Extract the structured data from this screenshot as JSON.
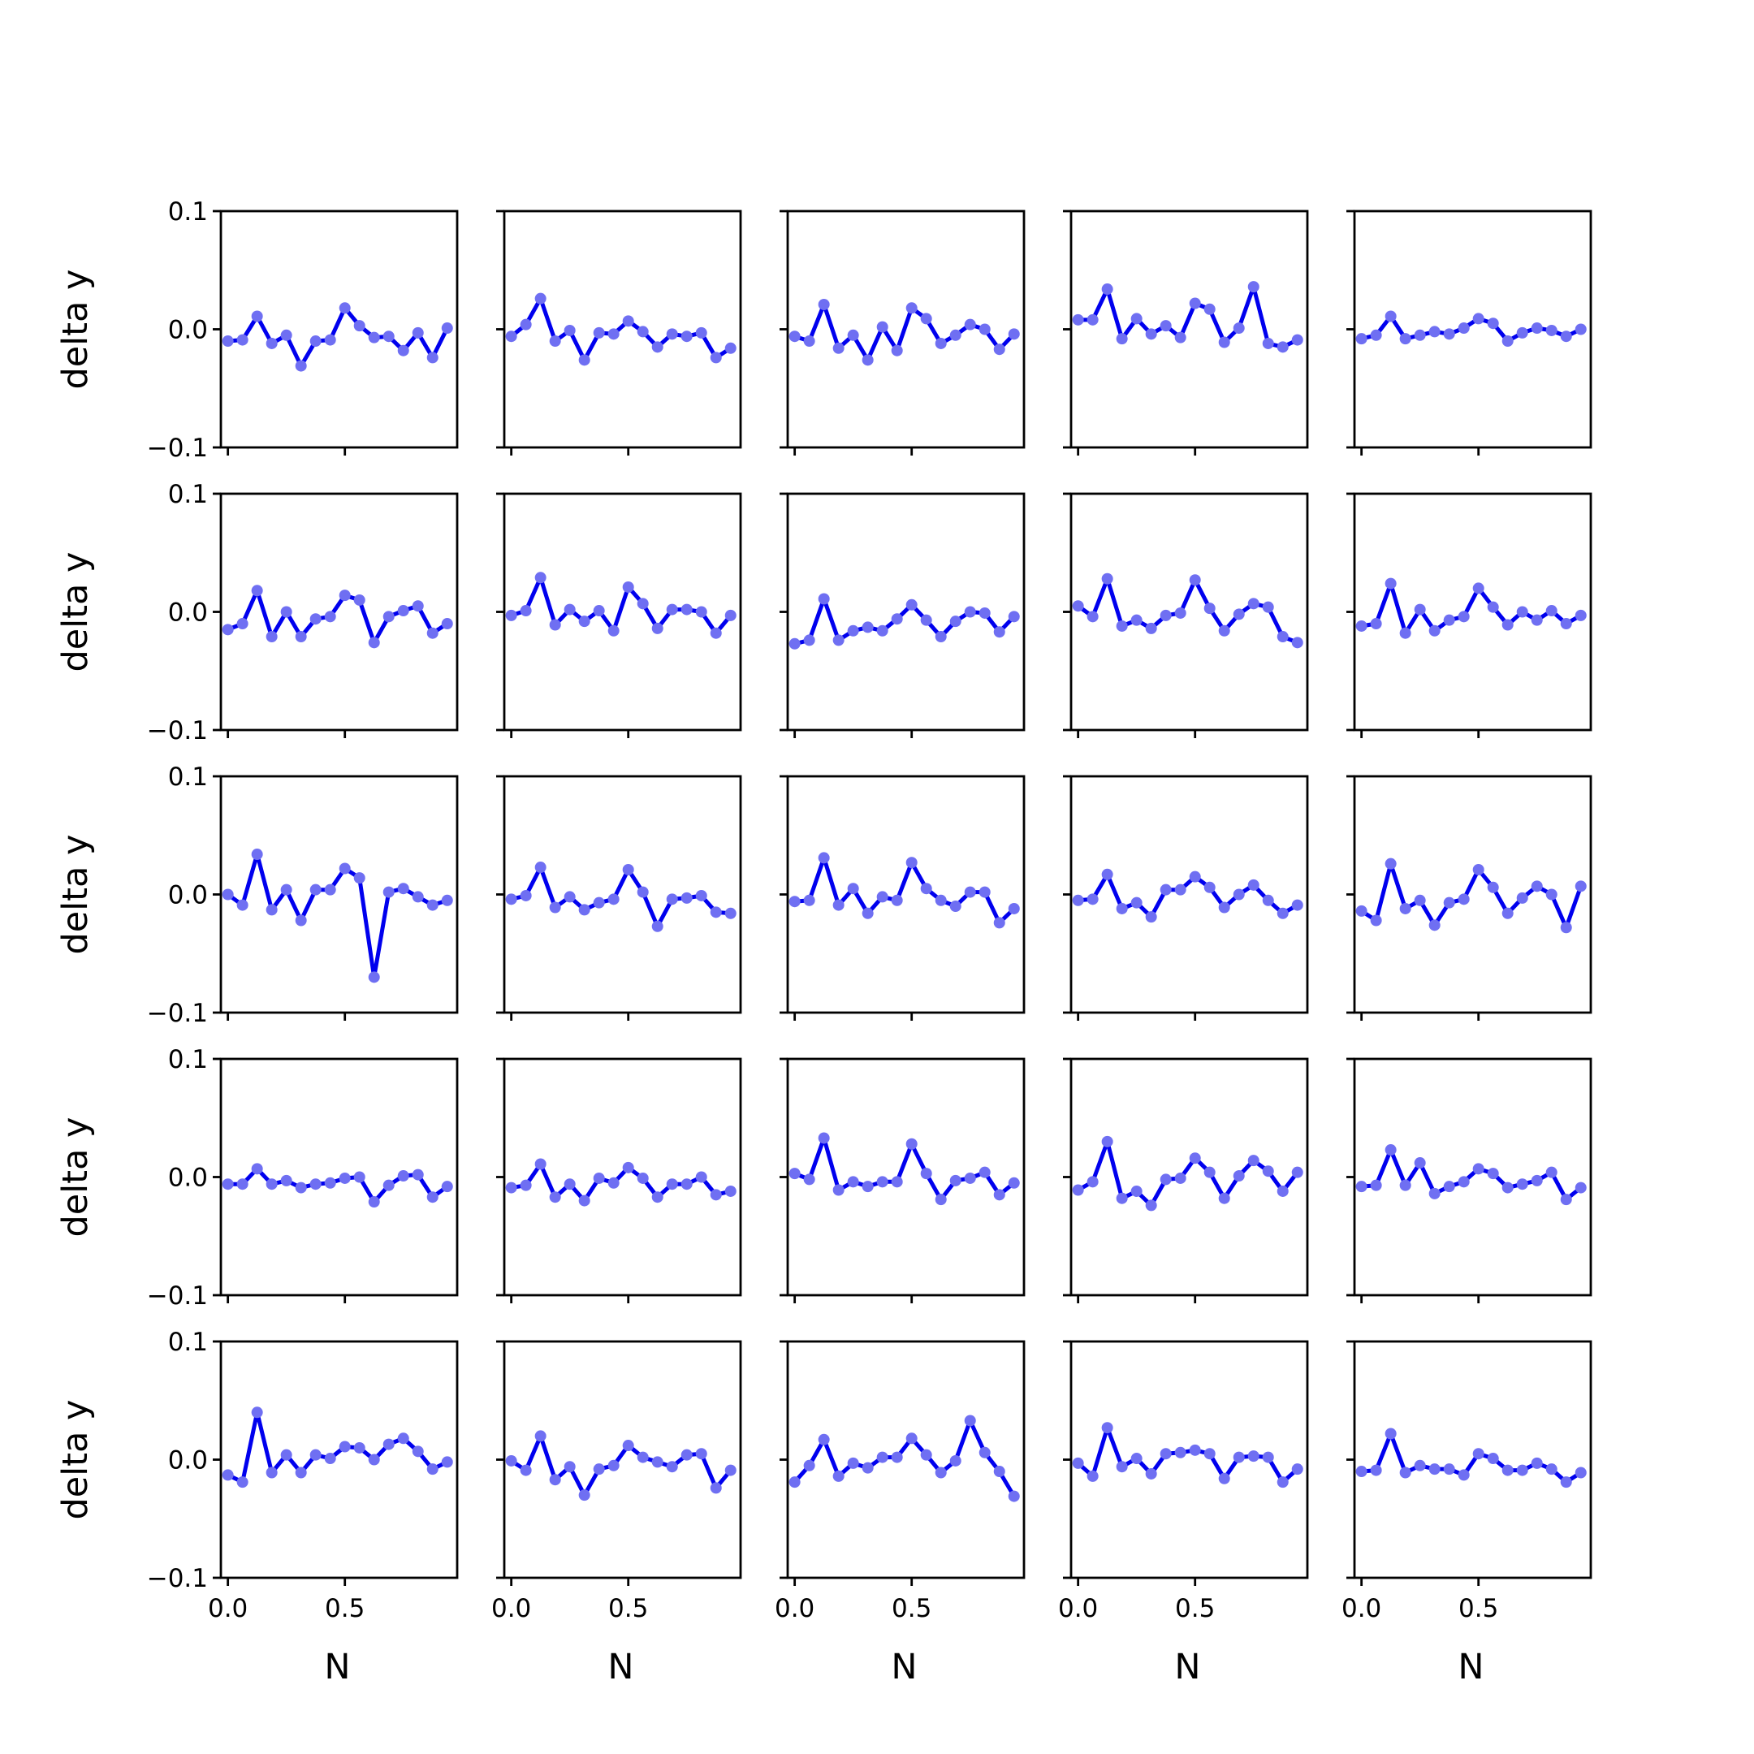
{
  "figure": {
    "type": "small-multiples-line",
    "rows": 5,
    "cols": 5,
    "colors": {
      "line": "#0000ee",
      "marker": "#6f6ff2",
      "axes": "#000000",
      "background": "#ffffff"
    }
  },
  "chart_data": {
    "type": "line",
    "xlabel": "N",
    "ylabel": "delta y",
    "xlim": [
      -0.03,
      0.98
    ],
    "ylim": [
      -0.1,
      0.1
    ],
    "xticks": [
      0.0,
      0.5
    ],
    "xtick_labels": [
      "0.0",
      "0.5"
    ],
    "yticks": [
      0.1,
      0.0,
      -0.1
    ],
    "ytick_labels": [
      "0.1",
      "0.0",
      "−0.1"
    ],
    "shared_x_values": [
      0.0,
      0.0625,
      0.125,
      0.1875,
      0.25,
      0.3125,
      0.375,
      0.4375,
      0.5,
      0.5625,
      0.625,
      0.6875,
      0.75,
      0.8125,
      0.875,
      0.9375
    ],
    "panels": [
      [
        -0.01,
        -0.009,
        0.011,
        -0.012,
        -0.005,
        -0.031,
        -0.01,
        -0.009,
        0.018,
        0.003,
        -0.007,
        -0.006,
        -0.018,
        -0.003,
        -0.024,
        0.001
      ],
      [
        -0.006,
        0.004,
        0.026,
        -0.01,
        -0.001,
        -0.026,
        -0.003,
        -0.004,
        0.007,
        -0.002,
        -0.015,
        -0.004,
        -0.006,
        -0.003,
        -0.024,
        -0.016
      ],
      [
        -0.006,
        -0.01,
        0.021,
        -0.016,
        -0.005,
        -0.026,
        0.002,
        -0.018,
        0.018,
        0.009,
        -0.012,
        -0.005,
        0.004,
        0.0,
        -0.017,
        -0.004
      ],
      [
        0.008,
        0.008,
        0.034,
        -0.008,
        0.009,
        -0.004,
        0.003,
        -0.007,
        0.022,
        0.017,
        -0.011,
        0.001,
        0.036,
        -0.012,
        -0.015,
        -0.009
      ],
      [
        -0.008,
        -0.005,
        0.011,
        -0.008,
        -0.005,
        -0.002,
        -0.004,
        0.001,
        0.009,
        0.005,
        -0.01,
        -0.003,
        0.001,
        -0.001,
        -0.006,
        0.0
      ],
      [
        -0.015,
        -0.01,
        0.018,
        -0.021,
        0.0,
        -0.021,
        -0.006,
        -0.004,
        0.014,
        0.01,
        -0.026,
        -0.004,
        0.001,
        0.005,
        -0.018,
        -0.01
      ],
      [
        -0.003,
        0.001,
        0.029,
        -0.011,
        0.002,
        -0.008,
        0.001,
        -0.016,
        0.021,
        0.007,
        -0.014,
        0.002,
        0.002,
        0.0,
        -0.018,
        -0.003
      ],
      [
        -0.027,
        -0.024,
        0.011,
        -0.024,
        -0.016,
        -0.013,
        -0.016,
        -0.006,
        0.006,
        -0.007,
        -0.021,
        -0.008,
        0.0,
        -0.001,
        -0.017,
        -0.004
      ],
      [
        0.005,
        -0.004,
        0.028,
        -0.012,
        -0.007,
        -0.014,
        -0.003,
        -0.001,
        0.027,
        0.003,
        -0.016,
        -0.002,
        0.007,
        0.004,
        -0.021,
        -0.026
      ],
      [
        -0.012,
        -0.01,
        0.024,
        -0.018,
        0.002,
        -0.016,
        -0.007,
        -0.004,
        0.02,
        0.004,
        -0.011,
        0.0,
        -0.007,
        0.001,
        -0.01,
        -0.003
      ],
      [
        0.0,
        -0.009,
        0.034,
        -0.013,
        0.004,
        -0.022,
        0.004,
        0.004,
        0.022,
        0.014,
        -0.07,
        0.002,
        0.005,
        -0.002,
        -0.009,
        -0.005
      ],
      [
        -0.004,
        -0.001,
        0.023,
        -0.011,
        -0.002,
        -0.013,
        -0.007,
        -0.004,
        0.021,
        0.002,
        -0.027,
        -0.004,
        -0.003,
        -0.001,
        -0.015,
        -0.016
      ],
      [
        -0.006,
        -0.005,
        0.031,
        -0.009,
        0.005,
        -0.016,
        -0.002,
        -0.005,
        0.027,
        0.005,
        -0.005,
        -0.01,
        0.002,
        0.002,
        -0.024,
        -0.012
      ],
      [
        -0.005,
        -0.004,
        0.017,
        -0.012,
        -0.007,
        -0.019,
        0.004,
        0.004,
        0.015,
        0.006,
        -0.011,
        0.0,
        0.008,
        -0.005,
        -0.016,
        -0.009
      ],
      [
        -0.014,
        -0.022,
        0.026,
        -0.012,
        -0.005,
        -0.026,
        -0.007,
        -0.004,
        0.021,
        0.006,
        -0.016,
        -0.003,
        0.007,
        0.0,
        -0.028,
        0.007
      ]
    ]
  }
}
